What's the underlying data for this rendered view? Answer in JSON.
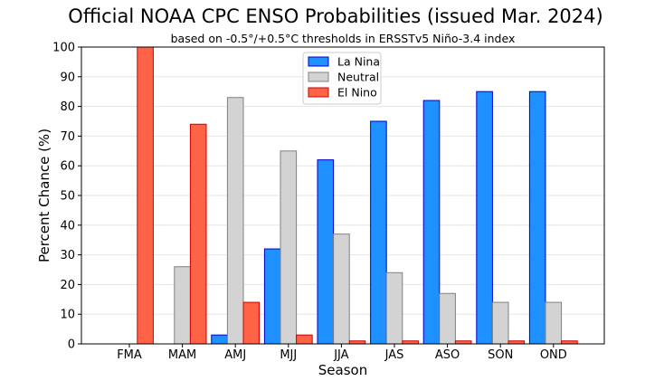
{
  "chart_data": {
    "type": "bar",
    "title": "Official NOAA CPC ENSO Probabilities (issued Mar. 2024)",
    "subtitle": "based on -0.5°/+0.5°C thresholds in ERSSTv5 Niño-3.4 index",
    "xlabel": "Season",
    "ylabel": "Percent Chance (%)",
    "ylim": [
      0,
      100
    ],
    "yticks": [
      0,
      10,
      20,
      30,
      40,
      50,
      60,
      70,
      80,
      90,
      100
    ],
    "grid": true,
    "legend_position": "top-center",
    "categories": [
      "FMA",
      "MAM",
      "AMJ",
      "MJJ",
      "JJA",
      "JAS",
      "ASO",
      "SON",
      "OND"
    ],
    "series": [
      {
        "name": "La Nina",
        "color": "#1E90FF",
        "edge": "#0000CD",
        "values": [
          0,
          0,
          3,
          32,
          62,
          75,
          82,
          85,
          85
        ]
      },
      {
        "name": "Neutral",
        "color": "#D3D3D3",
        "edge": "#808080",
        "values": [
          0,
          26,
          83,
          65,
          37,
          24,
          17,
          14,
          14
        ]
      },
      {
        "name": "El Nino",
        "color": "#FF6347",
        "edge": "#CC0000",
        "values": [
          100,
          74,
          14,
          3,
          1,
          1,
          1,
          1,
          1
        ]
      }
    ]
  }
}
